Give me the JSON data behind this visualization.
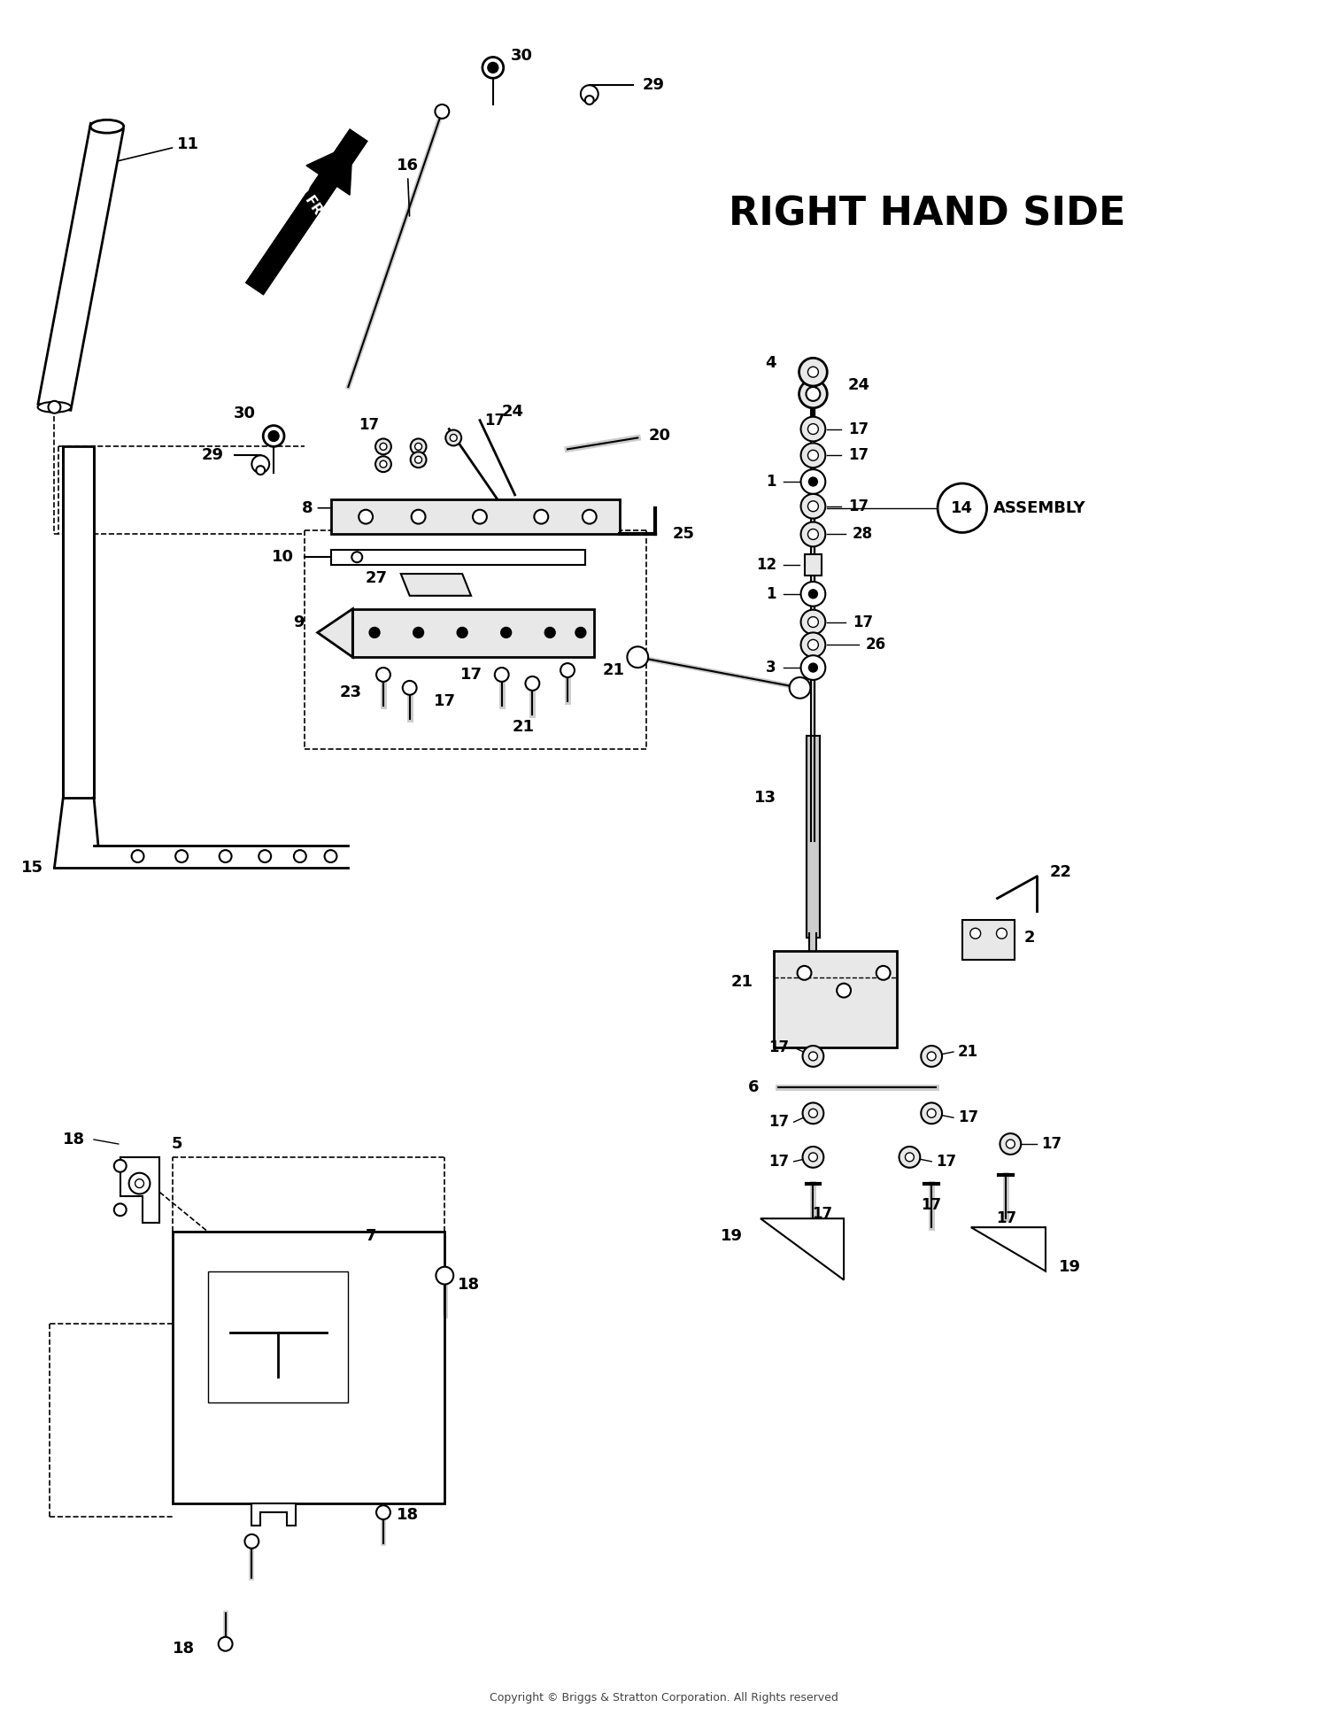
{
  "title": "RIGHT HAND SIDE",
  "background_color": "#ffffff",
  "copyright_text": "Copyright © Briggs & Stratton Corporation. All Rights reserved",
  "fig_width": 15.0,
  "fig_height": 19.46,
  "dpi": 100
}
